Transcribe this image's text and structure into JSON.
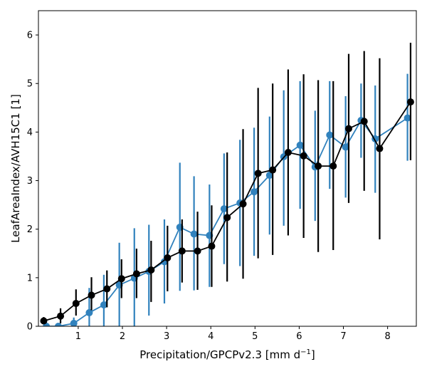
{
  "chart_data": {
    "type": "line",
    "xlabel": "Precipitation/GPCPv2.3 [mm d",
    "xlabel_sup": "−1",
    "xlabel_end": "]",
    "ylabel": "LeafAreaIndex/AVH15C1 [1]",
    "xlim": [
      0.1,
      8.65
    ],
    "ylim": [
      0,
      6.5
    ],
    "xticks": [
      1,
      2,
      3,
      4,
      5,
      6,
      7,
      8
    ],
    "yticks": [
      0,
      1,
      2,
      3,
      4,
      5,
      6
    ],
    "grid": false,
    "series": [
      {
        "color": "#3182bd",
        "x": [
          0.28,
          0.55,
          0.9,
          1.25,
          1.58,
          1.93,
          2.27,
          2.6,
          2.95,
          3.3,
          3.62,
          3.97,
          4.3,
          4.66,
          4.98,
          5.33,
          5.65,
          6.02,
          6.36,
          6.69,
          7.05,
          7.4,
          7.72,
          8.45
        ],
        "y": [
          0.0,
          0.0,
          0.06,
          0.28,
          0.44,
          0.85,
          0.99,
          1.13,
          1.33,
          2.04,
          1.9,
          1.87,
          2.42,
          2.54,
          2.77,
          3.11,
          3.49,
          3.73,
          3.28,
          3.94,
          3.69,
          4.24,
          3.86,
          4.29
        ],
        "err_low": [
          0.0,
          0.0,
          0.0,
          0.0,
          0.0,
          0.0,
          0.0,
          0.22,
          0.47,
          0.73,
          0.74,
          0.81,
          1.28,
          1.24,
          1.45,
          1.89,
          2.07,
          2.42,
          2.17,
          2.83,
          2.65,
          3.47,
          2.75,
          3.41
        ],
        "err_high": [
          0.0,
          0.0,
          0.18,
          0.79,
          1.06,
          1.72,
          2.02,
          2.09,
          2.2,
          3.37,
          3.09,
          2.92,
          3.56,
          3.84,
          4.09,
          4.32,
          4.86,
          5.05,
          4.44,
          5.05,
          4.74,
          5.0,
          4.96,
          5.2
        ]
      },
      {
        "color": "#000000",
        "x": [
          0.22,
          0.6,
          0.95,
          1.3,
          1.65,
          1.98,
          2.32,
          2.65,
          3.02,
          3.35,
          3.7,
          4.02,
          4.37,
          4.73,
          5.07,
          5.4,
          5.75,
          6.1,
          6.43,
          6.77,
          7.12,
          7.47,
          7.82,
          8.52
        ],
        "y": [
          0.11,
          0.21,
          0.47,
          0.64,
          0.77,
          0.98,
          1.08,
          1.16,
          1.41,
          1.55,
          1.55,
          1.65,
          2.24,
          2.52,
          3.15,
          3.22,
          3.58,
          3.51,
          3.3,
          3.3,
          4.07,
          4.22,
          3.66,
          4.62
        ],
        "err_low": [
          0.04,
          0.06,
          0.22,
          0.33,
          0.39,
          0.58,
          0.58,
          0.5,
          0.72,
          0.9,
          0.75,
          0.81,
          0.92,
          0.98,
          1.4,
          1.47,
          1.87,
          1.82,
          1.53,
          1.57,
          2.54,
          2.79,
          1.79,
          3.42
        ],
        "err_high": [
          0.19,
          0.37,
          0.76,
          1.01,
          1.15,
          1.38,
          1.6,
          1.76,
          2.07,
          2.2,
          2.36,
          2.49,
          3.58,
          4.06,
          4.91,
          5.0,
          5.29,
          5.19,
          5.07,
          5.05,
          5.61,
          5.67,
          5.52,
          5.84
        ]
      }
    ]
  }
}
